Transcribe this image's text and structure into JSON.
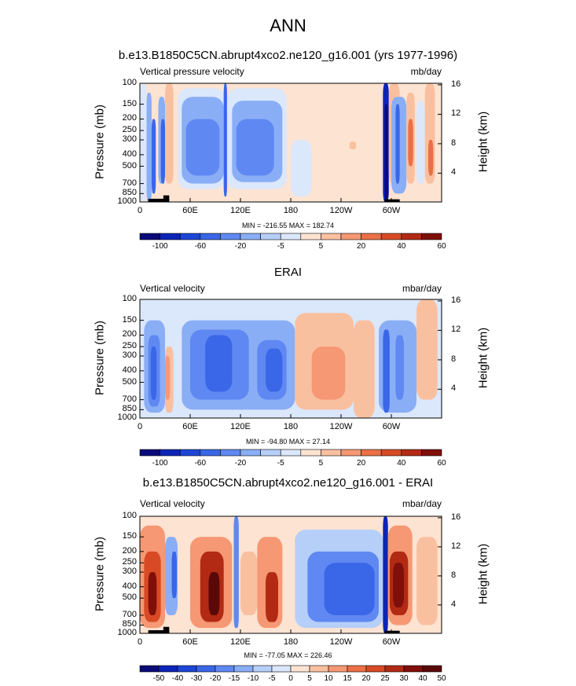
{
  "main_title": "ANN",
  "colors": {
    "palette_main": [
      "#0a0a7a",
      "#0d24b8",
      "#1e46d6",
      "#3a66e8",
      "#5f88f2",
      "#8aaef5",
      "#b6cff8",
      "#dbe7fb",
      "#fde3d2",
      "#f9c0a0",
      "#f59873",
      "#ec6f46",
      "#d84a25",
      "#b22a14",
      "#7f0f0a"
    ],
    "palette_diff": [
      "#0a0a7a",
      "#0d24b8",
      "#1e46d6",
      "#3a66e8",
      "#5f88f2",
      "#8aaef5",
      "#b6cff8",
      "#dbe7fb",
      "#fde3d2",
      "#f9c0a0",
      "#f59873",
      "#ec6f46",
      "#d84a25",
      "#b22a14",
      "#7f0f0a",
      "#5a0808"
    ],
    "topography": "#000000"
  },
  "chart_data": [
    {
      "type": "heatmap",
      "title": "b.e13.B1850C5CN.abrupt4xco2.ne120_g16.001 (yrs 1977-1996)",
      "variable": "Vertical pressure velocity",
      "units": "mb/day",
      "ylabel": "Pressure (mb)",
      "y2label": "Height (km)",
      "x_ticks": [
        "0",
        "60E",
        "120E",
        "180",
        "120W",
        "60W"
      ],
      "x_range": [
        0,
        360
      ],
      "y_ticks": [
        "100",
        "150",
        "200",
        "250",
        "300",
        "400",
        "500",
        "700",
        "850",
        "1000"
      ],
      "y_ticks_values": [
        100,
        150,
        200,
        250,
        300,
        400,
        500,
        700,
        850,
        1000
      ],
      "y2_ticks": [
        "4",
        "8",
        "12",
        "16"
      ],
      "y2_ticks_values": [
        4,
        8,
        12,
        16
      ],
      "min_max": "MIN = -216.55  MAX = 182.74",
      "colorbar_labels": [
        "-100",
        "-60",
        "-20",
        "-5",
        "5",
        "20",
        "40",
        "60"
      ],
      "colorbar_levels": [
        -120,
        -100,
        -80,
        -60,
        -40,
        -20,
        -10,
        -5,
        0,
        5,
        10,
        20,
        30,
        40,
        60
      ],
      "field": [
        {
          "lon": [
            0,
            8
          ],
          "p": [
            100,
            1000
          ],
          "v": -5
        },
        {
          "lon": [
            8,
            14
          ],
          "p": [
            120,
            1000
          ],
          "v": -20
        },
        {
          "lon": [
            14,
            19
          ],
          "p": [
            200,
            850
          ],
          "v": -60
        },
        {
          "lon": [
            22,
            30
          ],
          "p": [
            130,
            700
          ],
          "v": -20
        },
        {
          "lon": [
            25,
            30
          ],
          "p": [
            200,
            700
          ],
          "v": -60
        },
        {
          "lon": [
            30,
            40
          ],
          "p": [
            100,
            700
          ],
          "v": 5
        },
        {
          "lon": [
            45,
            102
          ],
          "p": [
            110,
            780
          ],
          "v": -5
        },
        {
          "lon": [
            50,
            100
          ],
          "p": [
            130,
            700
          ],
          "v": -20
        },
        {
          "lon": [
            55,
            95
          ],
          "p": [
            200,
            600
          ],
          "v": -40
        },
        {
          "lon": [
            100,
            104
          ],
          "p": [
            100,
            900
          ],
          "v": -60
        },
        {
          "lon": [
            104,
            175
          ],
          "p": [
            110,
            780
          ],
          "v": -5
        },
        {
          "lon": [
            110,
            170
          ],
          "p": [
            140,
            680
          ],
          "v": -20
        },
        {
          "lon": [
            115,
            160
          ],
          "p": [
            200,
            600
          ],
          "v": -40
        },
        {
          "lon": [
            180,
            205
          ],
          "p": [
            300,
            900
          ],
          "v": -5
        },
        {
          "lon": [
            250,
            258
          ],
          "p": [
            310,
            360
          ],
          "v": 5
        },
        {
          "lon": [
            290,
            297
          ],
          "p": [
            100,
            1000
          ],
          "v": -100
        },
        {
          "lon": [
            292,
            296
          ],
          "p": [
            150,
            1000
          ],
          "v": -120
        },
        {
          "lon": [
            297,
            310
          ],
          "p": [
            100,
            700
          ],
          "v": 5
        },
        {
          "lon": [
            300,
            318
          ],
          "p": [
            130,
            850
          ],
          "v": -20
        },
        {
          "lon": [
            305,
            310
          ],
          "p": [
            150,
            700
          ],
          "v": -60
        },
        {
          "lon": [
            318,
            328
          ],
          "p": [
            120,
            700
          ],
          "v": 5
        },
        {
          "lon": [
            320,
            326
          ],
          "p": [
            200,
            500
          ],
          "v": 20
        },
        {
          "lon": [
            330,
            340
          ],
          "p": [
            140,
            700
          ],
          "v": -5
        },
        {
          "lon": [
            340,
            352
          ],
          "p": [
            100,
            700
          ],
          "v": 5
        },
        {
          "lon": [
            344,
            350
          ],
          "p": [
            300,
            600
          ],
          "v": 20
        }
      ]
    },
    {
      "type": "heatmap",
      "title": "ERAI",
      "variable": "Vertical velocity",
      "units": "mbar/day",
      "ylabel": "Pressure (mb)",
      "y2label": "Height (km)",
      "x_ticks": [
        "0",
        "60E",
        "120E",
        "180",
        "120W",
        "60W"
      ],
      "x_range": [
        0,
        360
      ],
      "y_ticks": [
        "100",
        "150",
        "200",
        "250",
        "300",
        "400",
        "500",
        "700",
        "850",
        "1000"
      ],
      "y_ticks_values": [
        100,
        150,
        200,
        250,
        300,
        400,
        500,
        700,
        850,
        1000
      ],
      "y2_ticks": [
        "4",
        "8",
        "12",
        "16"
      ],
      "y2_ticks_values": [
        4,
        8,
        12,
        16
      ],
      "min_max": "MIN = -94.80  MAX = 27.14",
      "colorbar_labels": [
        "-100",
        "-60",
        "-20",
        "-5",
        "5",
        "20",
        "40",
        "60"
      ],
      "colorbar_levels": [
        -120,
        -100,
        -80,
        -60,
        -40,
        -20,
        -10,
        -5,
        0,
        5,
        10,
        20,
        30,
        40,
        60
      ],
      "field": [
        {
          "lon": [
            0,
            360
          ],
          "p": [
            100,
            1000
          ],
          "v": -5
        },
        {
          "lon": [
            5,
            30
          ],
          "p": [
            150,
            900
          ],
          "v": -20
        },
        {
          "lon": [
            10,
            24
          ],
          "p": [
            200,
            800
          ],
          "v": -40
        },
        {
          "lon": [
            13,
            20
          ],
          "p": [
            250,
            700
          ],
          "v": -60
        },
        {
          "lon": [
            30,
            40
          ],
          "p": [
            250,
            900
          ],
          "v": 5
        },
        {
          "lon": [
            30,
            36
          ],
          "p": [
            300,
            700
          ],
          "v": 10
        },
        {
          "lon": [
            50,
            185
          ],
          "p": [
            150,
            850
          ],
          "v": -20
        },
        {
          "lon": [
            60,
            130
          ],
          "p": [
            180,
            700
          ],
          "v": -40
        },
        {
          "lon": [
            78,
            110
          ],
          "p": [
            200,
            600
          ],
          "v": -60
        },
        {
          "lon": [
            140,
            175
          ],
          "p": [
            220,
            700
          ],
          "v": -40
        },
        {
          "lon": [
            150,
            170
          ],
          "p": [
            260,
            600
          ],
          "v": -60
        },
        {
          "lon": [
            185,
            255
          ],
          "p": [
            130,
            850
          ],
          "v": 5
        },
        {
          "lon": [
            205,
            245
          ],
          "p": [
            250,
            700
          ],
          "v": 10
        },
        {
          "lon": [
            255,
            280
          ],
          "p": [
            150,
            1000
          ],
          "v": 5
        },
        {
          "lon": [
            285,
            330
          ],
          "p": [
            150,
            900
          ],
          "v": -20
        },
        {
          "lon": [
            290,
            298
          ],
          "p": [
            180,
            900
          ],
          "v": -60
        },
        {
          "lon": [
            305,
            315
          ],
          "p": [
            200,
            700
          ],
          "v": -40
        },
        {
          "lon": [
            330,
            355
          ],
          "p": [
            100,
            700
          ],
          "v": 5
        }
      ]
    },
    {
      "type": "heatmap",
      "title": "b.e13.B1850C5CN.abrupt4xco2.ne120_g16.001 - ERAI",
      "variable": "Vertical velocity",
      "units": "mbar/day",
      "ylabel": "Pressure (mb)",
      "y2label": "Height (km)",
      "x_ticks": [
        "0",
        "60E",
        "120E",
        "180",
        "120W",
        "60W"
      ],
      "x_range": [
        0,
        360
      ],
      "y_ticks": [
        "100",
        "150",
        "200",
        "250",
        "300",
        "400",
        "500",
        "700",
        "850",
        "1000"
      ],
      "y_ticks_values": [
        100,
        150,
        200,
        250,
        300,
        400,
        500,
        700,
        850,
        1000
      ],
      "y2_ticks": [
        "4",
        "8",
        "12",
        "16"
      ],
      "y2_ticks_values": [
        4,
        8,
        12,
        16
      ],
      "min_max": "MIN = -77.05  MAX = 226.46",
      "colorbar_labels": [
        "-50",
        "-40",
        "-30",
        "-20",
        "-15",
        "-10",
        "-5",
        "0",
        "5",
        "10",
        "15",
        "20",
        "25",
        "30",
        "40",
        "50"
      ],
      "colorbar_levels": [
        -60,
        -50,
        -40,
        -30,
        -20,
        -15,
        -10,
        -5,
        0,
        5,
        10,
        15,
        20,
        25,
        30,
        40
      ],
      "field": [
        {
          "lon": [
            0,
            360
          ],
          "p": [
            100,
            1000
          ],
          "v": 0
        },
        {
          "lon": [
            0,
            30
          ],
          "p": [
            120,
            900
          ],
          "v": 10
        },
        {
          "lon": [
            5,
            25
          ],
          "p": [
            200,
            800
          ],
          "v": 20
        },
        {
          "lon": [
            10,
            20
          ],
          "p": [
            300,
            700
          ],
          "v": 30
        },
        {
          "lon": [
            30,
            45
          ],
          "p": [
            150,
            700
          ],
          "v": -15
        },
        {
          "lon": [
            38,
            44
          ],
          "p": [
            200,
            500
          ],
          "v": -30
        },
        {
          "lon": [
            60,
            110
          ],
          "p": [
            150,
            900
          ],
          "v": 10
        },
        {
          "lon": [
            72,
            100
          ],
          "p": [
            200,
            800
          ],
          "v": 25
        },
        {
          "lon": [
            82,
            95
          ],
          "p": [
            300,
            700
          ],
          "v": 40
        },
        {
          "lon": [
            112,
            118
          ],
          "p": [
            100,
            900
          ],
          "v": -20
        },
        {
          "lon": [
            120,
            140
          ],
          "p": [
            200,
            700
          ],
          "v": 5
        },
        {
          "lon": [
            140,
            170
          ],
          "p": [
            150,
            900
          ],
          "v": 10
        },
        {
          "lon": [
            150,
            165
          ],
          "p": [
            300,
            800
          ],
          "v": 25
        },
        {
          "lon": [
            185,
            290
          ],
          "p": [
            130,
            900
          ],
          "v": -10
        },
        {
          "lon": [
            200,
            285
          ],
          "p": [
            200,
            800
          ],
          "v": -20
        },
        {
          "lon": [
            220,
            280
          ],
          "p": [
            250,
            700
          ],
          "v": -30
        },
        {
          "lon": [
            290,
            296
          ],
          "p": [
            100,
            1000
          ],
          "v": -50
        },
        {
          "lon": [
            296,
            325
          ],
          "p": [
            120,
            850
          ],
          "v": 10
        },
        {
          "lon": [
            298,
            320
          ],
          "p": [
            200,
            700
          ],
          "v": 25
        },
        {
          "lon": [
            302,
            315
          ],
          "p": [
            250,
            600
          ],
          "v": 30
        },
        {
          "lon": [
            330,
            355
          ],
          "p": [
            150,
            850
          ],
          "v": 5
        }
      ]
    }
  ]
}
